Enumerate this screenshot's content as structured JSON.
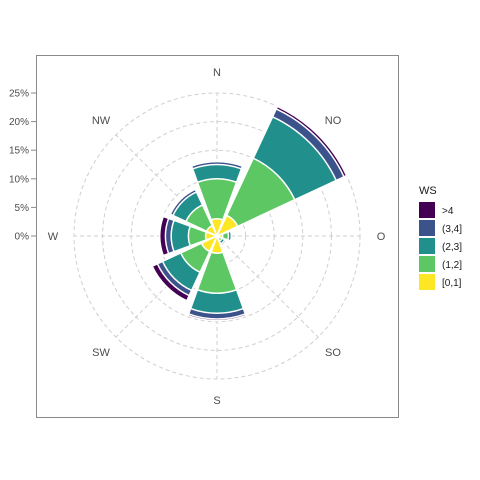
{
  "chart_data": {
    "type": "bar",
    "coordinate_system": "polar",
    "directions": [
      "N",
      "NO",
      "O",
      "SO",
      "S",
      "SW",
      "W",
      "NW"
    ],
    "radial_axis": {
      "ticks": [
        "0%",
        "5%",
        "10%",
        "15%",
        "20%",
        "25%"
      ],
      "values": [
        0,
        5,
        10,
        15,
        20,
        25
      ],
      "unit": "%"
    },
    "legend": {
      "title": "WS",
      "placement": "right",
      "entries": [
        ">4",
        "(3,4]",
        "(2,3]",
        "(1,2]",
        "[0,1]"
      ]
    },
    "series": [
      {
        "name": "[0,1]",
        "color": "#FDE725",
        "values": [
          3,
          4,
          1,
          0.5,
          3,
          3,
          2,
          2
        ]
      },
      {
        "name": "(1,2]",
        "color": "#5DC863",
        "values": [
          7,
          11,
          1,
          0.5,
          7,
          4,
          3,
          4
        ]
      },
      {
        "name": "(2,3]",
        "color": "#21908C",
        "values": [
          2.5,
          8,
          0.5,
          0.5,
          3.5,
          3.5,
          3,
          2.5
        ]
      },
      {
        "name": "(3,4]",
        "color": "#3B528B",
        "values": [
          0.5,
          1.5,
          0,
          0.3,
          1,
          1,
          1,
          0.5
        ]
      },
      {
        "name": ">4",
        "color": "#440154",
        "values": [
          0.2,
          0.5,
          0,
          0.2,
          0.3,
          1,
          1,
          0.2
        ]
      }
    ],
    "grid": true
  }
}
